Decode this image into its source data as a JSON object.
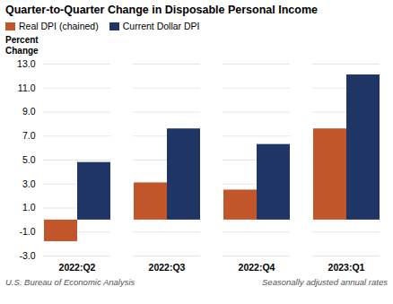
{
  "chart_data": {
    "type": "bar",
    "title": "Quarter-to-Quarter Change in Disposable Personal Income",
    "ylabel": "Percent\nChange",
    "categories": [
      "2022:Q2",
      "2022:Q3",
      "2022:Q4",
      "2023:Q1"
    ],
    "series": [
      {
        "name": "Real DPI (chained)",
        "color": "#C0562A",
        "values": [
          -1.8,
          3.1,
          2.5,
          7.6
        ]
      },
      {
        "name": "Current Dollar DPI",
        "color": "#1F3566",
        "values": [
          4.8,
          7.6,
          6.3,
          12.1
        ]
      }
    ],
    "ylim": [
      -3.0,
      13.0
    ],
    "yticks": [
      {
        "value": -3.0,
        "label": "-3.0"
      },
      {
        "value": -1.0,
        "label": "-1.0"
      },
      {
        "value": 1.0,
        "label": "1.0"
      },
      {
        "value": 3.0,
        "label": "3.0"
      },
      {
        "value": 5.0,
        "label": "5.0"
      },
      {
        "value": 7.0,
        "label": "7.0"
      },
      {
        "value": 9.0,
        "label": "9.0"
      },
      {
        "value": 11.0,
        "label": "11.0"
      },
      {
        "value": 13.0,
        "label": "13.0"
      }
    ],
    "grid": true,
    "legend": "upper left",
    "annotations": [
      "U.S. Bureau of Economic Analysis",
      "Seasonally adjusted annual rates"
    ]
  }
}
